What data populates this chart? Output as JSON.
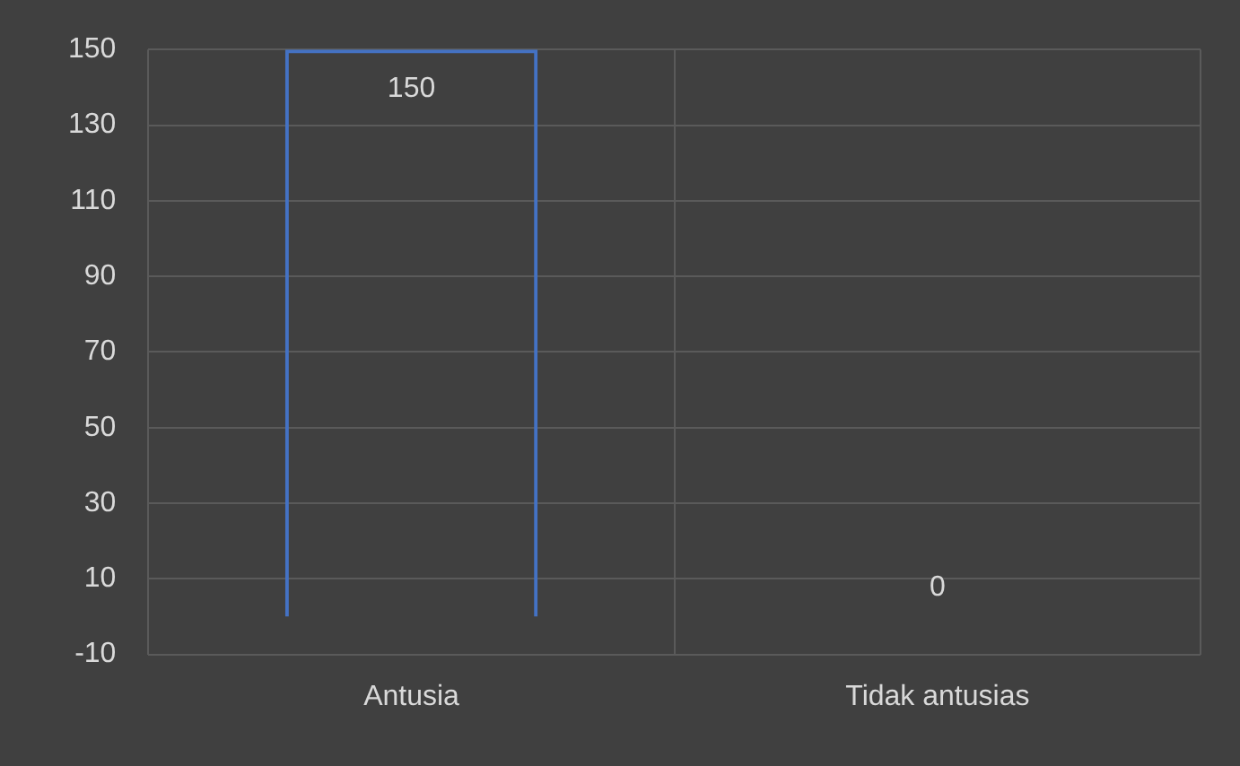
{
  "chart_data": {
    "type": "bar",
    "categories": [
      "Antusia",
      "Tidak antusias"
    ],
    "values": [
      150,
      0
    ],
    "color": "#4472c4",
    "ylim": [
      -10,
      150
    ],
    "yticks": [
      -10,
      10,
      30,
      50,
      70,
      90,
      110,
      130,
      150
    ],
    "grid": true,
    "data_labels": true
  }
}
